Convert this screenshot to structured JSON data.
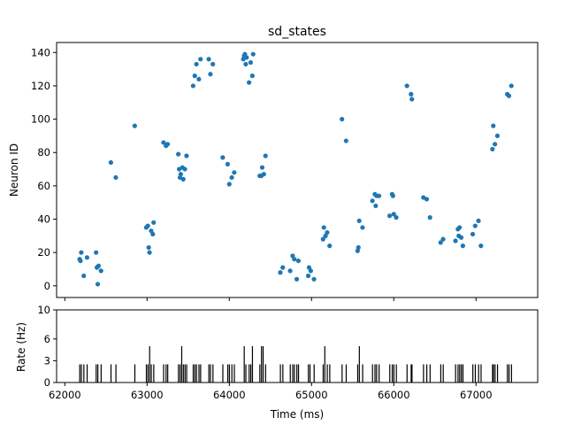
{
  "colors": {
    "dots": "#1f77b4",
    "bars": "#000000",
    "axes": "#000000"
  },
  "chart_data": [
    {
      "type": "scatter",
      "title": "sd_states",
      "xlabel": "",
      "ylabel": "Neuron ID",
      "xlim": [
        61900,
        67750
      ],
      "ylim": [
        -7,
        146
      ],
      "yticks": [
        0,
        20,
        40,
        60,
        80,
        100,
        120,
        140
      ],
      "xticks": [
        62000,
        63000,
        64000,
        65000,
        66000,
        67000
      ],
      "x_tick_labels_visible": false,
      "grid": false,
      "points": [
        [
          62180,
          16
        ],
        [
          62190,
          15
        ],
        [
          62200,
          20
        ],
        [
          62230,
          6
        ],
        [
          62270,
          17
        ],
        [
          62380,
          20
        ],
        [
          62390,
          11
        ],
        [
          62400,
          1
        ],
        [
          62410,
          12
        ],
        [
          62440,
          9
        ],
        [
          62560,
          74
        ],
        [
          62620,
          65
        ],
        [
          62850,
          96
        ],
        [
          62990,
          35
        ],
        [
          63010,
          36
        ],
        [
          63020,
          23
        ],
        [
          63030,
          20
        ],
        [
          63050,
          33
        ],
        [
          63070,
          31
        ],
        [
          63080,
          38
        ],
        [
          63200,
          86
        ],
        [
          63230,
          84
        ],
        [
          63250,
          85
        ],
        [
          63380,
          79
        ],
        [
          63390,
          70
        ],
        [
          63400,
          65
        ],
        [
          63410,
          67
        ],
        [
          63430,
          71
        ],
        [
          63440,
          64
        ],
        [
          63460,
          70
        ],
        [
          63480,
          78
        ],
        [
          63560,
          120
        ],
        [
          63580,
          126
        ],
        [
          63600,
          133
        ],
        [
          63630,
          124
        ],
        [
          63650,
          136
        ],
        [
          63750,
          136
        ],
        [
          63770,
          127
        ],
        [
          63800,
          133
        ],
        [
          63920,
          77
        ],
        [
          63980,
          73
        ],
        [
          64000,
          61
        ],
        [
          64030,
          65
        ],
        [
          64060,
          68
        ],
        [
          64170,
          136
        ],
        [
          64180,
          138
        ],
        [
          64190,
          139
        ],
        [
          64200,
          133
        ],
        [
          64210,
          137
        ],
        [
          64240,
          122
        ],
        [
          64260,
          134
        ],
        [
          64280,
          126
        ],
        [
          64290,
          139
        ],
        [
          64370,
          66
        ],
        [
          64390,
          66
        ],
        [
          64400,
          71
        ],
        [
          64420,
          67
        ],
        [
          64440,
          78
        ],
        [
          64620,
          8
        ],
        [
          64650,
          11
        ],
        [
          64740,
          9
        ],
        [
          64770,
          18
        ],
        [
          64790,
          16
        ],
        [
          64820,
          4
        ],
        [
          64840,
          15
        ],
        [
          64960,
          6
        ],
        [
          64970,
          11
        ],
        [
          64990,
          9
        ],
        [
          65030,
          4
        ],
        [
          65140,
          28
        ],
        [
          65150,
          35
        ],
        [
          65170,
          30
        ],
        [
          65190,
          32
        ],
        [
          65220,
          24
        ],
        [
          65370,
          100
        ],
        [
          65420,
          87
        ],
        [
          65560,
          21
        ],
        [
          65570,
          23
        ],
        [
          65580,
          39
        ],
        [
          65620,
          35
        ],
        [
          65740,
          51
        ],
        [
          65770,
          55
        ],
        [
          65780,
          48
        ],
        [
          65790,
          54
        ],
        [
          65820,
          54
        ],
        [
          65950,
          42
        ],
        [
          65980,
          55
        ],
        [
          65990,
          54
        ],
        [
          66000,
          43
        ],
        [
          66030,
          41
        ],
        [
          66160,
          120
        ],
        [
          66210,
          115
        ],
        [
          66220,
          112
        ],
        [
          66360,
          53
        ],
        [
          66400,
          52
        ],
        [
          66440,
          41
        ],
        [
          66570,
          26
        ],
        [
          66600,
          28
        ],
        [
          66750,
          27
        ],
        [
          66780,
          34
        ],
        [
          66790,
          30
        ],
        [
          66800,
          35
        ],
        [
          66820,
          29
        ],
        [
          66840,
          24
        ],
        [
          66960,
          31
        ],
        [
          66990,
          36
        ],
        [
          67030,
          39
        ],
        [
          67060,
          24
        ],
        [
          67200,
          82
        ],
        [
          67210,
          96
        ],
        [
          67230,
          85
        ],
        [
          67260,
          90
        ],
        [
          67380,
          115
        ],
        [
          67400,
          114
        ],
        [
          67430,
          120
        ]
      ]
    },
    {
      "type": "bar",
      "xlabel": "Time (ms)",
      "ylabel": "Rate (Hz)",
      "xlim": [
        61900,
        67750
      ],
      "ylim": [
        0,
        10
      ],
      "yticks": [
        0,
        3,
        6,
        10
      ],
      "xticks": [
        62000,
        63000,
        64000,
        65000,
        66000,
        67000
      ],
      "bar_width": 10,
      "bars": [
        [
          62180,
          2.5
        ],
        [
          62200,
          2.5
        ],
        [
          62230,
          2.5
        ],
        [
          62270,
          2.5
        ],
        [
          62380,
          2.5
        ],
        [
          62400,
          2.5
        ],
        [
          62440,
          2.5
        ],
        [
          62560,
          2.5
        ],
        [
          62620,
          2.5
        ],
        [
          62850,
          2.5
        ],
        [
          62990,
          2.5
        ],
        [
          63010,
          2.5
        ],
        [
          63030,
          5
        ],
        [
          63050,
          2.5
        ],
        [
          63080,
          2.5
        ],
        [
          63200,
          2.5
        ],
        [
          63230,
          2.5
        ],
        [
          63250,
          2.5
        ],
        [
          63380,
          2.5
        ],
        [
          63400,
          2.5
        ],
        [
          63420,
          5
        ],
        [
          63440,
          2.5
        ],
        [
          63460,
          2.5
        ],
        [
          63480,
          2.5
        ],
        [
          63560,
          2.5
        ],
        [
          63580,
          2.5
        ],
        [
          63600,
          2.5
        ],
        [
          63630,
          2.5
        ],
        [
          63650,
          2.5
        ],
        [
          63750,
          2.5
        ],
        [
          63770,
          2.5
        ],
        [
          63800,
          2.5
        ],
        [
          63920,
          2.5
        ],
        [
          63980,
          2.5
        ],
        [
          64000,
          2.5
        ],
        [
          64030,
          2.5
        ],
        [
          64060,
          2.5
        ],
        [
          64180,
          5
        ],
        [
          64200,
          2.5
        ],
        [
          64240,
          2.5
        ],
        [
          64260,
          2.5
        ],
        [
          64280,
          5
        ],
        [
          64370,
          2.5
        ],
        [
          64390,
          5
        ],
        [
          64410,
          5
        ],
        [
          64440,
          2.5
        ],
        [
          64620,
          2.5
        ],
        [
          64650,
          2.5
        ],
        [
          64740,
          2.5
        ],
        [
          64770,
          2.5
        ],
        [
          64790,
          2.5
        ],
        [
          64820,
          2.5
        ],
        [
          64840,
          2.5
        ],
        [
          64960,
          2.5
        ],
        [
          64980,
          2.5
        ],
        [
          65030,
          2.5
        ],
        [
          65140,
          2.5
        ],
        [
          65160,
          5
        ],
        [
          65190,
          2.5
        ],
        [
          65220,
          2.5
        ],
        [
          65370,
          2.5
        ],
        [
          65420,
          2.5
        ],
        [
          65560,
          2.5
        ],
        [
          65580,
          5
        ],
        [
          65620,
          2.5
        ],
        [
          65740,
          2.5
        ],
        [
          65770,
          2.5
        ],
        [
          65790,
          2.5
        ],
        [
          65820,
          2.5
        ],
        [
          65950,
          2.5
        ],
        [
          65980,
          2.5
        ],
        [
          66000,
          2.5
        ],
        [
          66030,
          2.5
        ],
        [
          66160,
          2.5
        ],
        [
          66210,
          2.5
        ],
        [
          66220,
          2.5
        ],
        [
          66360,
          2.5
        ],
        [
          66400,
          2.5
        ],
        [
          66440,
          2.5
        ],
        [
          66570,
          2.5
        ],
        [
          66600,
          2.5
        ],
        [
          66750,
          2.5
        ],
        [
          66780,
          2.5
        ],
        [
          66800,
          2.5
        ],
        [
          66820,
          2.5
        ],
        [
          66840,
          2.5
        ],
        [
          66960,
          2.5
        ],
        [
          66990,
          2.5
        ],
        [
          67030,
          2.5
        ],
        [
          67060,
          2.5
        ],
        [
          67200,
          2.5
        ],
        [
          67210,
          2.5
        ],
        [
          67230,
          2.5
        ],
        [
          67260,
          2.5
        ],
        [
          67380,
          2.5
        ],
        [
          67400,
          2.5
        ],
        [
          67430,
          2.5
        ]
      ]
    }
  ]
}
